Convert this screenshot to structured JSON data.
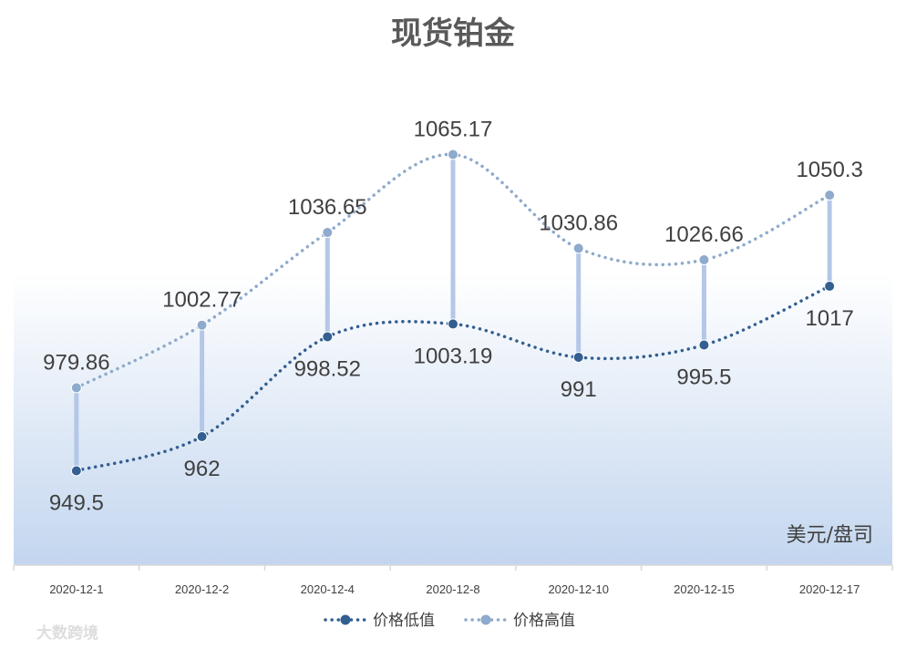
{
  "chart_data": {
    "type": "line",
    "title": "现货铂金",
    "unit_label": "美元/盘司",
    "categories": [
      "2020-12-1",
      "2020-12-2",
      "2020-12-4",
      "2020-12-8",
      "2020-12-10",
      "2020-12-15",
      "2020-12-17"
    ],
    "series": [
      {
        "name": "价格低值",
        "values": [
          949.5,
          962,
          998.52,
          1003.19,
          991,
          995.5,
          1017
        ],
        "color": "#335f91"
      },
      {
        "name": "价格高值",
        "values": [
          979.86,
          1002.77,
          1036.65,
          1065.17,
          1030.86,
          1026.66,
          1050.3
        ],
        "color": "#8eaacc"
      }
    ],
    "data_labels": true,
    "grid": false,
    "legend_position": "bottom",
    "high_low_lines": true,
    "colors": {
      "high_low_line": "#b4c7e7",
      "gradient_bottom": "#c3d6ef",
      "axis": "#d9d9d9"
    }
  },
  "watermark": "大数跨境"
}
